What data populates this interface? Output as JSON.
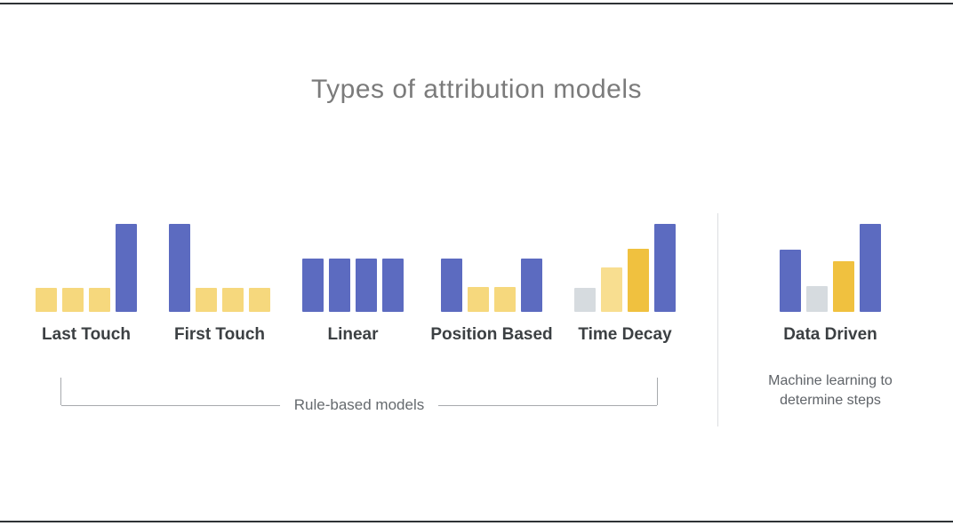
{
  "title": "Types of attribution models",
  "bracket": {
    "label": "Rule-based models"
  },
  "note": "Machine learning to determine steps",
  "colors": {
    "title_gray": "#7b7b7b",
    "label_dark": "#3c4043",
    "note_gray": "#5f6368",
    "bracket_line": "#a7aaad",
    "divider": "#dcdee1",
    "frame_rule": "#2e3236"
  },
  "chart_data": {
    "type": "bar",
    "title": "Types of attribution models",
    "note": "Six mini bar charts; bar heights are relative credit weights (1.0 = tallest bar), grid off, no axes",
    "palette": {
      "indigo": "#5c6bc0",
      "yellow": "#f6d87d",
      "light_yellow": "#f8de90",
      "gold": "#f0c13f",
      "gray": "#d6dbdf"
    },
    "groups": [
      {
        "label": "Last Touch",
        "bars": [
          {
            "color": "yellow",
            "value": 0.27
          },
          {
            "color": "yellow",
            "value": 0.27
          },
          {
            "color": "yellow",
            "value": 0.27
          },
          {
            "color": "indigo",
            "value": 1.0
          }
        ]
      },
      {
        "label": "First Touch",
        "bars": [
          {
            "color": "indigo",
            "value": 1.0
          },
          {
            "color": "yellow",
            "value": 0.27
          },
          {
            "color": "yellow",
            "value": 0.27
          },
          {
            "color": "yellow",
            "value": 0.27
          }
        ]
      },
      {
        "label": "Linear",
        "bars": [
          {
            "color": "indigo",
            "value": 0.61
          },
          {
            "color": "indigo",
            "value": 0.61
          },
          {
            "color": "indigo",
            "value": 0.61
          },
          {
            "color": "indigo",
            "value": 0.61
          }
        ]
      },
      {
        "label": "Position Based",
        "bars": [
          {
            "color": "indigo",
            "value": 0.61
          },
          {
            "color": "yellow",
            "value": 0.28
          },
          {
            "color": "yellow",
            "value": 0.28
          },
          {
            "color": "indigo",
            "value": 0.61
          }
        ]
      },
      {
        "label": "Time Decay",
        "bars": [
          {
            "color": "gray",
            "value": 0.27
          },
          {
            "color": "light_yellow",
            "value": 0.51
          },
          {
            "color": "gold",
            "value": 0.72
          },
          {
            "color": "indigo",
            "value": 1.0
          }
        ]
      },
      {
        "label": "Data Driven",
        "bars": [
          {
            "color": "indigo",
            "value": 0.71
          },
          {
            "color": "gray",
            "value": 0.29
          },
          {
            "color": "gold",
            "value": 0.58
          },
          {
            "color": "indigo",
            "value": 1.0
          }
        ]
      }
    ]
  }
}
